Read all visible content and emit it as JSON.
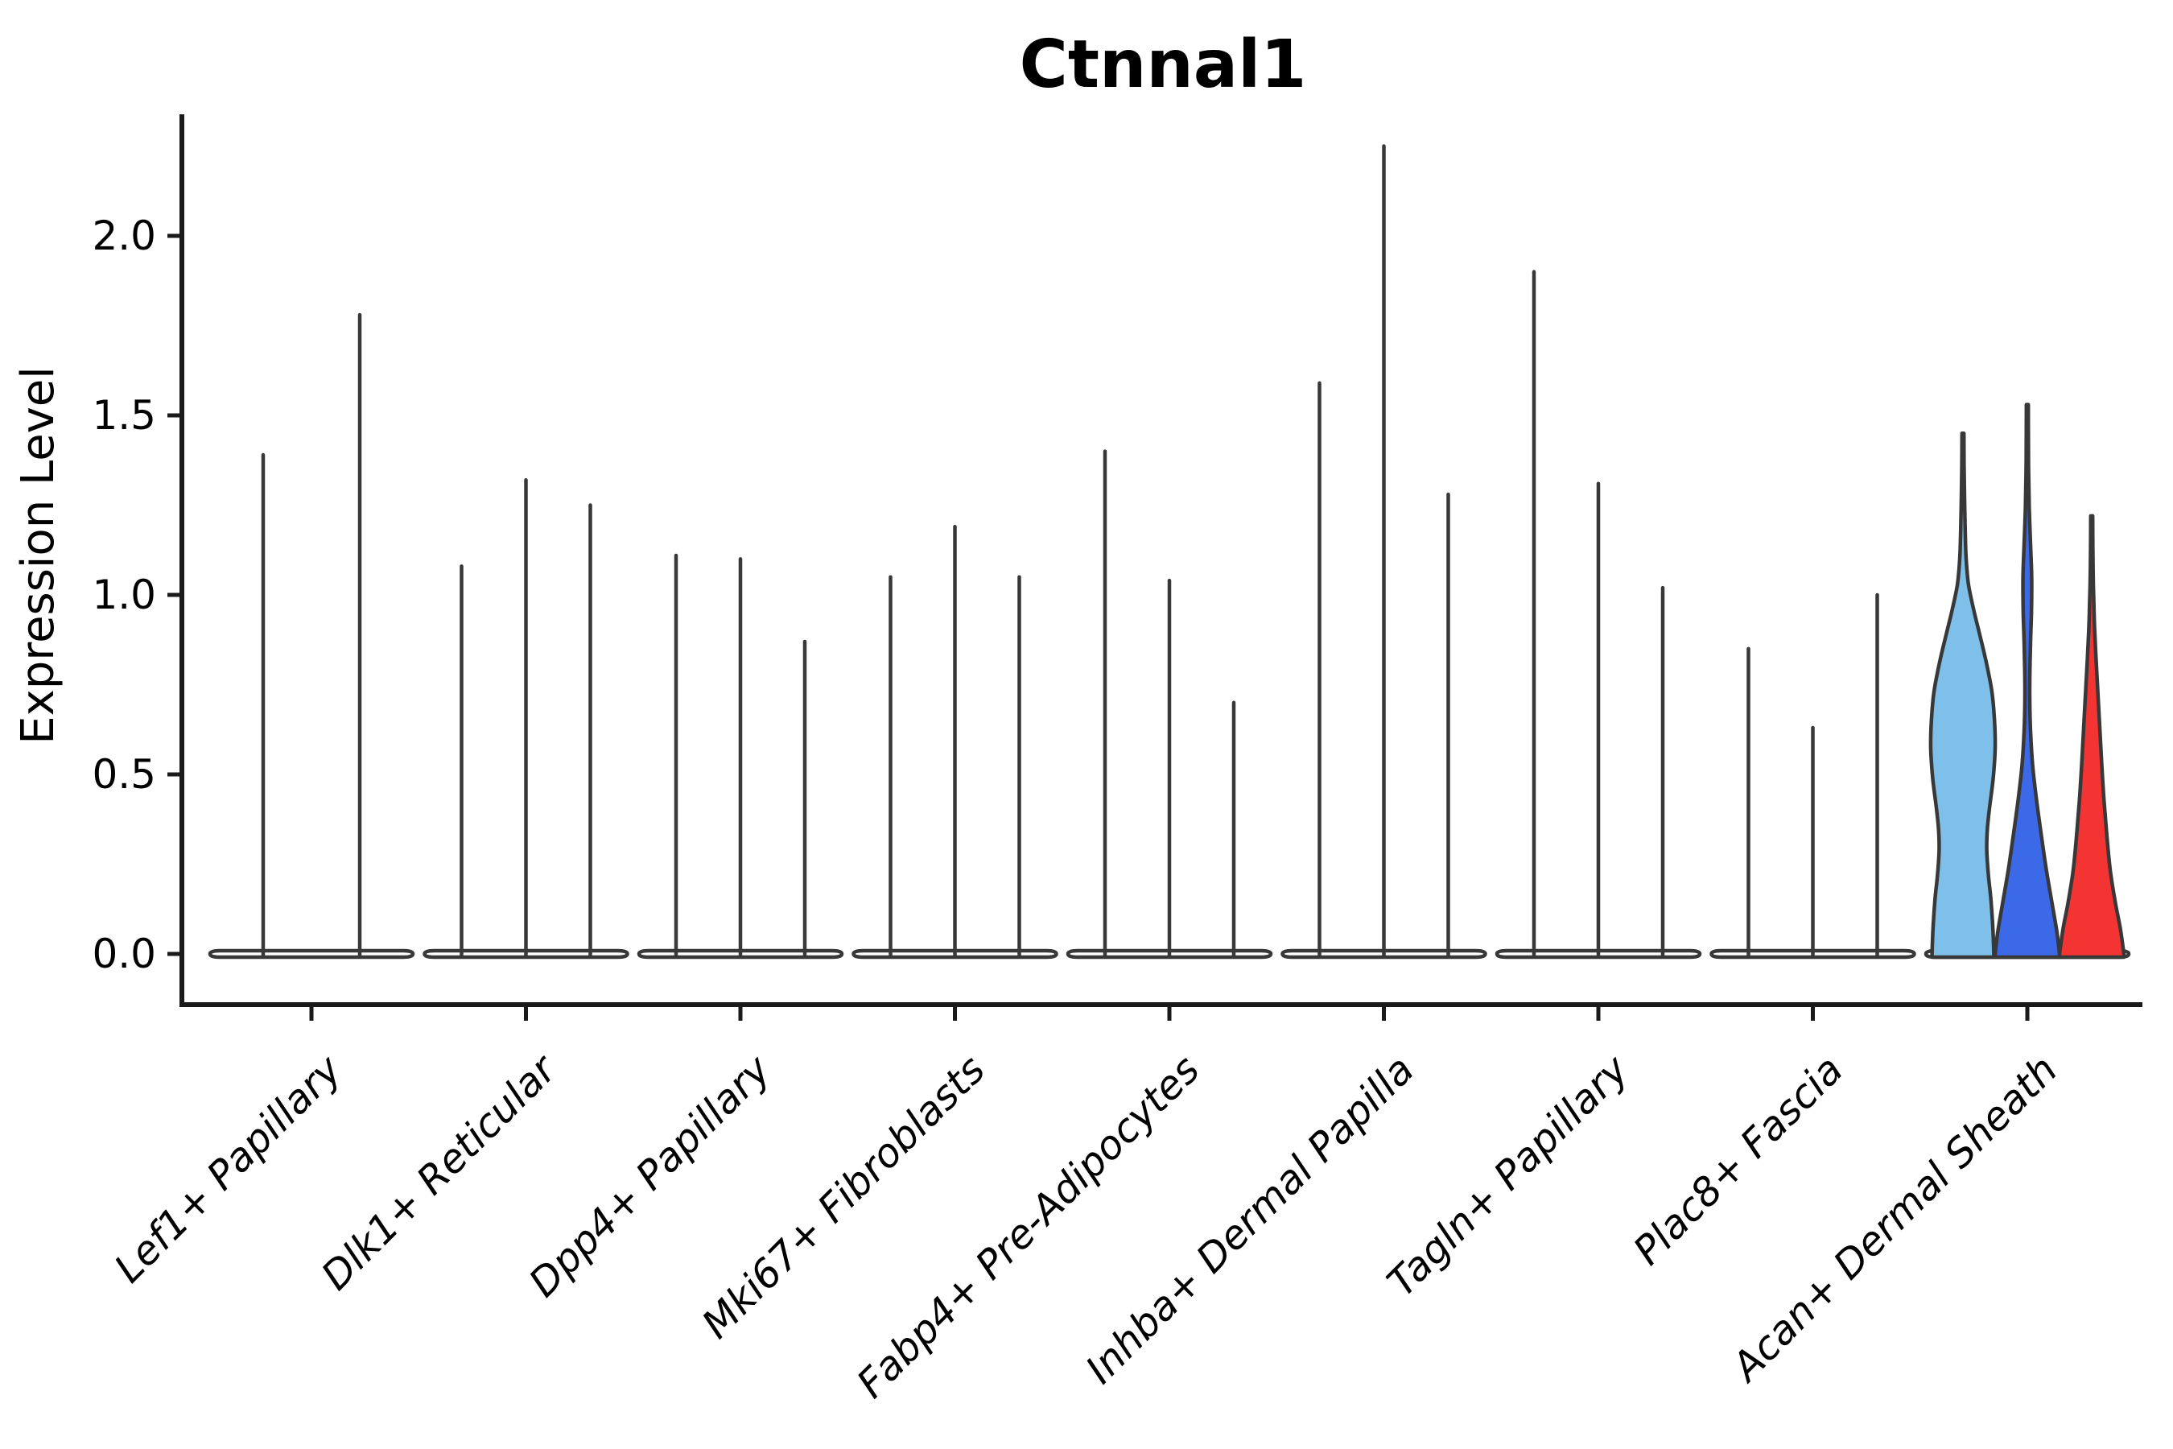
{
  "chart_data": {
    "type": "violin",
    "title": "Ctnnal1",
    "ylabel": "Expression Level",
    "xlabel": "",
    "ylim": [
      -0.05,
      2.34
    ],
    "grid": false,
    "legend_position": "none",
    "yticks": [
      {
        "value": 0.0,
        "label": "0.0"
      },
      {
        "value": 0.5,
        "label": "0.5"
      },
      {
        "value": 1.0,
        "label": "1.0"
      },
      {
        "value": 1.5,
        "label": "1.5"
      },
      {
        "value": 2.0,
        "label": "2.0"
      }
    ],
    "categories": [
      "Lef1+ Papillary",
      "Dlk1+ Reticular",
      "Dpp4+ Papillary",
      "Mki67+ Fibroblasts",
      "Fabp4+ Pre-Adipocytes",
      "Inhba+ Dermal Papilla",
      "Tagln+ Papillary",
      "Plac8+ Fascia",
      "Acan+ Dermal Sheath"
    ],
    "groups": [
      {
        "category": "Lef1+ Papillary",
        "violins": [
          {
            "max": 1.39,
            "fill": null
          },
          {
            "max": 1.78,
            "fill": null
          }
        ]
      },
      {
        "category": "Dlk1+ Reticular",
        "violins": [
          {
            "max": 1.08,
            "fill": null
          },
          {
            "max": 1.32,
            "fill": null
          },
          {
            "max": 1.25,
            "fill": null
          }
        ]
      },
      {
        "category": "Dpp4+ Papillary",
        "violins": [
          {
            "max": 1.11,
            "fill": null
          },
          {
            "max": 1.1,
            "fill": null
          },
          {
            "max": 0.87,
            "fill": null
          }
        ]
      },
      {
        "category": "Mki67+ Fibroblasts",
        "violins": [
          {
            "max": 1.05,
            "fill": null
          },
          {
            "max": 1.19,
            "fill": null
          },
          {
            "max": 1.05,
            "fill": null
          }
        ]
      },
      {
        "category": "Fabp4+ Pre-Adipocytes",
        "violins": [
          {
            "max": 1.4,
            "fill": null
          },
          {
            "max": 1.04,
            "fill": null
          },
          {
            "max": 0.7,
            "fill": null
          }
        ]
      },
      {
        "category": "Inhba+ Dermal Papilla",
        "violins": [
          {
            "max": 1.59,
            "fill": null
          },
          {
            "max": 2.25,
            "fill": null
          },
          {
            "max": 1.28,
            "fill": null
          }
        ]
      },
      {
        "category": "Tagln+ Papillary",
        "violins": [
          {
            "max": 1.9,
            "fill": null
          },
          {
            "max": 1.31,
            "fill": null
          },
          {
            "max": 1.02,
            "fill": null
          }
        ]
      },
      {
        "category": "Plac8+ Fascia",
        "violins": [
          {
            "max": 0.85,
            "fill": null
          },
          {
            "max": 0.63,
            "fill": null
          },
          {
            "max": 1.0,
            "fill": null
          }
        ]
      },
      {
        "category": "Acan+ Dermal Sheath",
        "violins": [
          {
            "max": 1.45,
            "fill": "#7EC0EA",
            "profile": [
              [
                1.45,
                0.03
              ],
              [
                1.36,
                0.035
              ],
              [
                1.27,
                0.05
              ],
              [
                1.18,
                0.07
              ],
              [
                1.1,
                0.1
              ],
              [
                1.03,
                0.17
              ],
              [
                0.96,
                0.33
              ],
              [
                0.89,
                0.52
              ],
              [
                0.81,
                0.73
              ],
              [
                0.73,
                0.9
              ],
              [
                0.65,
                0.98
              ],
              [
                0.57,
                1.0
              ],
              [
                0.49,
                0.94
              ],
              [
                0.41,
                0.83
              ],
              [
                0.35,
                0.76
              ],
              [
                0.29,
                0.74
              ],
              [
                0.22,
                0.79
              ],
              [
                0.15,
                0.87
              ],
              [
                0.07,
                0.93
              ],
              [
                0.0,
                0.96
              ]
            ]
          },
          {
            "max": 1.53,
            "fill": "#3C69E8",
            "profile": [
              [
                1.53,
                0.03
              ],
              [
                1.44,
                0.032
              ],
              [
                1.34,
                0.04
              ],
              [
                1.24,
                0.06
              ],
              [
                1.14,
                0.1
              ],
              [
                1.05,
                0.135
              ],
              [
                0.96,
                0.13
              ],
              [
                0.87,
                0.1
              ],
              [
                0.79,
                0.08
              ],
              [
                0.71,
                0.075
              ],
              [
                0.62,
                0.1
              ],
              [
                0.53,
                0.16
              ],
              [
                0.44,
                0.27
              ],
              [
                0.34,
                0.42
              ],
              [
                0.24,
                0.58
              ],
              [
                0.14,
                0.77
              ],
              [
                0.06,
                0.92
              ],
              [
                0.0,
                1.0
              ]
            ]
          },
          {
            "max": 1.22,
            "fill": "#F43333",
            "profile": [
              [
                1.22,
                0.03
              ],
              [
                1.13,
                0.035
              ],
              [
                1.03,
                0.05
              ],
              [
                0.93,
                0.08
              ],
              [
                0.83,
                0.13
              ],
              [
                0.73,
                0.19
              ],
              [
                0.63,
                0.25
              ],
              [
                0.53,
                0.31
              ],
              [
                0.43,
                0.38
              ],
              [
                0.33,
                0.47
              ],
              [
                0.23,
                0.58
              ],
              [
                0.14,
                0.74
              ],
              [
                0.07,
                0.89
              ],
              [
                0.0,
                1.0
              ]
            ]
          }
        ]
      }
    ],
    "colors": {
      "violin_outline": "#383838",
      "axis": "#1a1a1a",
      "split_fills": [
        "#7EC0EA",
        "#3C69E8",
        "#F43333"
      ],
      "background": "#ffffff"
    }
  }
}
